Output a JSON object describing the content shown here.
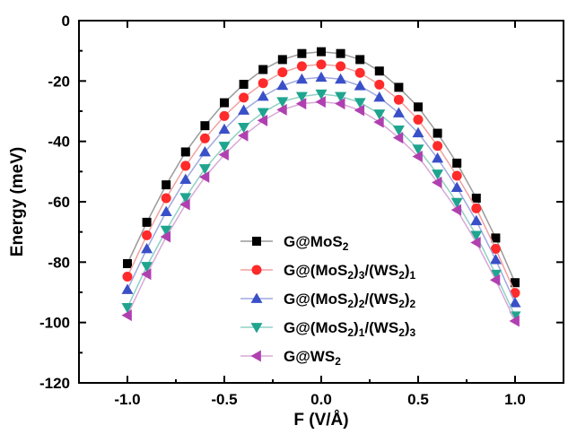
{
  "chart_data": {
    "type": "line",
    "title": "",
    "xlabel": "F (V/Å)",
    "ylabel": "Energy (meV)",
    "xlim": [
      -1.25,
      1.25
    ],
    "ylim": [
      -120,
      0
    ],
    "xticks": [
      -1.0,
      -0.5,
      0.0,
      0.5,
      1.0
    ],
    "xtick_labels": [
      "-1.0",
      "-0.5",
      "0.0",
      "0.5",
      "1.0"
    ],
    "yticks": [
      0,
      -20,
      -40,
      -60,
      -80,
      -100,
      -120
    ],
    "ytick_labels": [
      "0",
      "-20",
      "-40",
      "-60",
      "-80",
      "-100",
      "-120"
    ],
    "grid": false,
    "legend_position": "lower-center",
    "x": [
      -1.0,
      -0.9,
      -0.8,
      -0.7,
      -0.6,
      -0.5,
      -0.4,
      -0.3,
      -0.2,
      -0.1,
      0.0,
      0.1,
      0.2,
      0.3,
      0.4,
      0.5,
      0.6,
      0.7,
      0.8,
      0.9,
      1.0
    ],
    "series": [
      {
        "name": "G@MoS2",
        "legend_parts": [
          [
            "G@MoS",
            ""
          ],
          [
            "2",
            "sub"
          ]
        ],
        "marker": "square",
        "color": "#000000",
        "line_color": "#9a9a9a",
        "values": [
          -80.5,
          -66.8,
          -54.4,
          -43.5,
          -34.8,
          -27.2,
          -21.1,
          -16.2,
          -12.9,
          -10.9,
          -10.3,
          -10.9,
          -12.9,
          -16.7,
          -22.1,
          -28.6,
          -37.3,
          -47.2,
          -58.8,
          -72.0,
          -86.8
        ]
      },
      {
        "name": "G@(MoS2)3/(WS2)1",
        "legend_parts": [
          [
            "G@(MoS",
            ""
          ],
          [
            "2",
            "sub"
          ],
          [
            ")",
            ""
          ],
          [
            "3",
            "sub"
          ],
          [
            "/(WS",
            ""
          ],
          [
            "2",
            "sub"
          ],
          [
            ")",
            ""
          ],
          [
            "1",
            "sub"
          ]
        ],
        "marker": "circle",
        "color": "#ff2a2a",
        "line_color": "#f0a0a0",
        "values": [
          -84.8,
          -71.1,
          -58.8,
          -48.1,
          -39.0,
          -31.6,
          -25.5,
          -20.7,
          -17.1,
          -15.1,
          -14.5,
          -15.1,
          -17.3,
          -21.2,
          -26.2,
          -32.8,
          -41.5,
          -51.4,
          -62.2,
          -75.6,
          -90.2
        ]
      },
      {
        "name": "G@(MoS2)2/(WS2)2",
        "legend_parts": [
          [
            "G@(MoS",
            ""
          ],
          [
            "2",
            "sub"
          ],
          [
            ")",
            ""
          ],
          [
            "2",
            "sub"
          ],
          [
            "/(WS",
            ""
          ],
          [
            "2",
            "sub"
          ],
          [
            ")",
            ""
          ],
          [
            "2",
            "sub"
          ]
        ],
        "marker": "triangle-up",
        "color": "#3a50c8",
        "line_color": "#a0a8e0",
        "values": [
          -89.1,
          -75.6,
          -63.3,
          -52.6,
          -43.5,
          -36.0,
          -29.7,
          -25.1,
          -21.5,
          -19.4,
          -18.8,
          -19.4,
          -21.6,
          -25.4,
          -30.6,
          -37.2,
          -45.6,
          -55.3,
          -66.3,
          -79.2,
          -93.5
        ]
      },
      {
        "name": "G@(MoS2)1/(WS2)3",
        "legend_parts": [
          [
            "G@(MoS",
            ""
          ],
          [
            "2",
            "sub"
          ],
          [
            ")",
            ""
          ],
          [
            "1",
            "sub"
          ],
          [
            "/(WS",
            ""
          ],
          [
            "2",
            "sub"
          ],
          [
            ")",
            ""
          ],
          [
            "3",
            "sub"
          ]
        ],
        "marker": "triangle-down",
        "color": "#1fa58f",
        "line_color": "#90d0c4",
        "values": [
          -95.0,
          -81.4,
          -69.4,
          -58.6,
          -49.0,
          -41.6,
          -35.3,
          -30.4,
          -26.8,
          -25.1,
          -24.3,
          -25.1,
          -27.1,
          -30.9,
          -36.2,
          -42.5,
          -50.8,
          -60.2,
          -71.1,
          -84.0,
          -97.8
        ]
      },
      {
        "name": "G@WS2",
        "legend_parts": [
          [
            "G@WS",
            ""
          ],
          [
            "2",
            "sub"
          ]
        ],
        "marker": "triangle-left",
        "color": "#b040b0",
        "line_color": "#d8a8d8",
        "values": [
          -97.6,
          -84.0,
          -71.6,
          -60.9,
          -51.8,
          -44.4,
          -38.1,
          -33.1,
          -29.5,
          -27.5,
          -26.9,
          -27.5,
          -29.7,
          -33.6,
          -38.8,
          -45.0,
          -53.6,
          -62.7,
          -73.5,
          -85.9,
          -99.5
        ]
      }
    ]
  }
}
